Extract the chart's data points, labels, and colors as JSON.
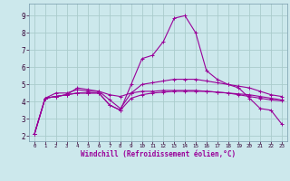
{
  "xlabel": "Windchill (Refroidissement éolien,°C)",
  "bg_color": "#cce8ec",
  "grid_color": "#aacccc",
  "line_color": "#990099",
  "spine_color": "#7799aa",
  "x_ticks": [
    0,
    1,
    2,
    3,
    4,
    5,
    6,
    7,
    8,
    9,
    10,
    11,
    12,
    13,
    14,
    15,
    16,
    17,
    18,
    19,
    20,
    21,
    22,
    23
  ],
  "y_ticks": [
    2,
    3,
    4,
    5,
    6,
    7,
    8,
    9
  ],
  "ylim": [
    1.7,
    9.7
  ],
  "xlim": [
    -0.5,
    23.5
  ],
  "lines": [
    [
      2.1,
      4.2,
      4.3,
      4.4,
      4.5,
      4.5,
      4.5,
      3.8,
      3.5,
      5.0,
      6.5,
      6.7,
      7.5,
      8.85,
      9.0,
      8.0,
      5.8,
      5.3,
      5.0,
      4.8,
      4.2,
      3.6,
      3.5,
      2.7
    ],
    [
      2.1,
      4.2,
      4.5,
      4.5,
      4.7,
      4.6,
      4.6,
      4.4,
      4.3,
      4.5,
      4.6,
      4.6,
      4.65,
      4.65,
      4.65,
      4.65,
      4.6,
      4.55,
      4.5,
      4.4,
      4.3,
      4.2,
      4.1,
      4.05
    ],
    [
      2.1,
      4.2,
      4.3,
      4.4,
      4.5,
      4.5,
      4.5,
      3.8,
      3.5,
      4.2,
      4.4,
      4.5,
      4.55,
      4.6,
      4.6,
      4.6,
      4.6,
      4.55,
      4.5,
      4.45,
      4.4,
      4.3,
      4.2,
      4.1
    ],
    [
      2.1,
      4.2,
      4.3,
      4.4,
      4.8,
      4.7,
      4.6,
      4.1,
      3.6,
      4.5,
      5.0,
      5.1,
      5.2,
      5.3,
      5.3,
      5.3,
      5.2,
      5.1,
      5.0,
      4.9,
      4.8,
      4.6,
      4.4,
      4.3
    ]
  ]
}
